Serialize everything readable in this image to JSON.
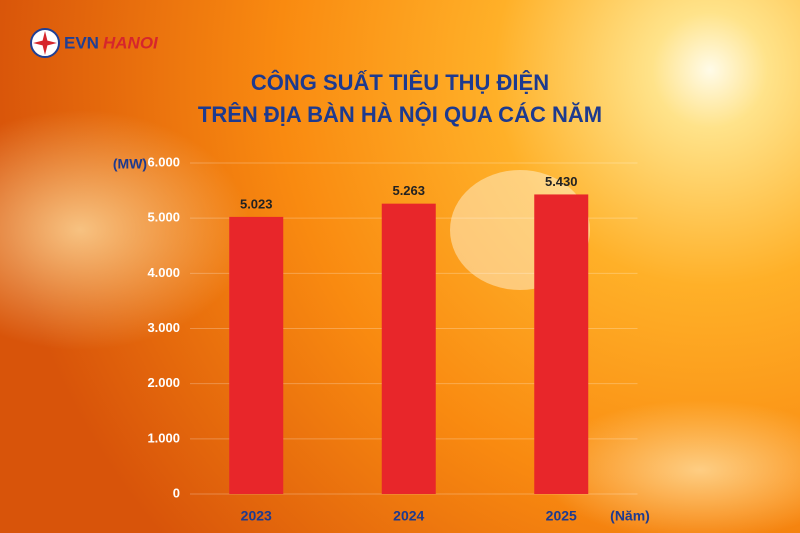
{
  "logo": {
    "left": "EVN",
    "right": "HANOI"
  },
  "chart_data": {
    "type": "bar",
    "title": "CÔNG SUẤT TIÊU THỤ ĐIỆN",
    "subtitle": "TRÊN ĐỊA BÀN HÀ NỘI QUA CÁC NĂM",
    "y_label": "(MW)",
    "x_label": "(Năm)",
    "categories": [
      "2023",
      "2024",
      "2025"
    ],
    "values": [
      5023,
      5263,
      5430
    ],
    "value_labels": [
      "5.023",
      "5.263",
      "5.430"
    ],
    "color": "#e8262a",
    "ylim": [
      0,
      6000
    ],
    "yticks": [
      0,
      {
        "value": 1000,
        "label": "1.000"
      },
      {
        "value": 2000,
        "label": "2.000"
      },
      {
        "value": 3000,
        "label": "3.000"
      },
      {
        "value": 4000,
        "label": "4.000"
      },
      {
        "value": 5000,
        "label": "5.000"
      },
      {
        "value": 6000,
        "label": "6.000"
      }
    ],
    "grid": true
  }
}
